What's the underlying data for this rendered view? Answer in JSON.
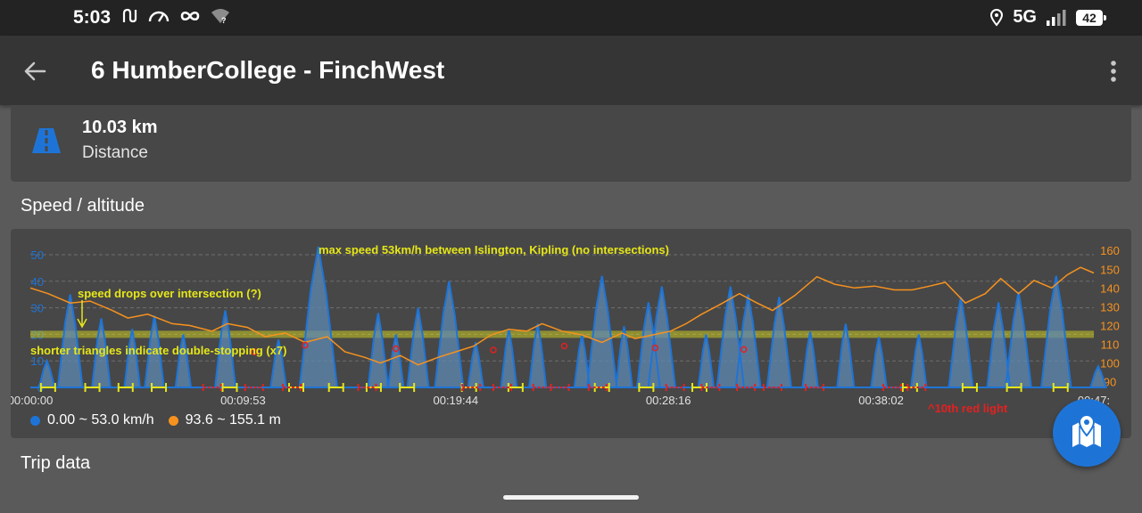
{
  "status_bar": {
    "time": "5:03",
    "network": "5G",
    "battery": "42",
    "icons": [
      "route-status-icon",
      "speedometer-icon",
      "infinity-icon",
      "wifi-unknown-icon",
      "location-icon",
      "signal-icon",
      "battery-icon"
    ]
  },
  "app_bar": {
    "title": "6 HumberCollege - FinchWest",
    "back_icon": "arrow-back-icon",
    "menu_icon": "more-vert-icon"
  },
  "distance": {
    "value": "10.03 km",
    "label": "Distance",
    "icon": "road-icon",
    "icon_color": "#1e74d6"
  },
  "section_speed_altitude": "Speed / altitude",
  "section_trip_data": "Trip data",
  "map_button_icon": "map-location-icon",
  "chart_data": {
    "type": "area",
    "left_axis": {
      "ticks": [
        "0",
        "10",
        "20",
        "30",
        "40",
        "50"
      ],
      "range": [
        0,
        53
      ],
      "color": "#1e74d6"
    },
    "right_axis": {
      "ticks": [
        "90",
        "100",
        "110",
        "120",
        "130",
        "140",
        "150",
        "160"
      ],
      "range": [
        87,
        162
      ],
      "color": "#f7921e"
    },
    "x_ticks": [
      "00:00:00",
      "00:09:53",
      "00:19:44",
      "00:28:16",
      "00:38:02",
      "00:47:"
    ],
    "x_range_minutes": [
      0,
      48
    ],
    "grid": true,
    "series": [
      {
        "name": "0.00 ~ 53.0 km/h",
        "color": "#1e74d6",
        "axis": "left"
      },
      {
        "name": "93.6 ~ 155.1 m",
        "color": "#f7921e",
        "axis": "right"
      }
    ],
    "speed_peaks": [
      [
        0.75,
        10
      ],
      [
        1.8,
        35
      ],
      [
        3.2,
        26
      ],
      [
        4.6,
        22
      ],
      [
        5.6,
        27
      ],
      [
        6.9,
        20
      ],
      [
        8.8,
        29
      ],
      [
        11.2,
        18
      ],
      [
        13.0,
        53
      ],
      [
        15.7,
        28
      ],
      [
        16.5,
        20
      ],
      [
        17.5,
        30
      ],
      [
        18.9,
        40
      ],
      [
        20.1,
        17
      ],
      [
        21.6,
        22
      ],
      [
        22.9,
        24
      ],
      [
        24.9,
        20
      ],
      [
        25.8,
        42
      ],
      [
        26.8,
        23
      ],
      [
        27.9,
        32
      ],
      [
        28.5,
        38
      ],
      [
        30.5,
        20
      ],
      [
        31.6,
        38
      ],
      [
        32.4,
        35
      ],
      [
        33.8,
        34
      ],
      [
        35.2,
        21
      ],
      [
        36.8,
        24
      ],
      [
        38.3,
        19
      ],
      [
        40.1,
        20
      ],
      [
        42.0,
        34
      ],
      [
        43.7,
        32
      ],
      [
        44.6,
        36
      ],
      [
        46.3,
        42
      ],
      [
        48.2,
        8
      ]
    ],
    "altitude": [
      [
        0,
        140
      ],
      [
        0.8,
        137
      ],
      [
        1.8,
        132
      ],
      [
        2.7,
        133
      ],
      [
        3.7,
        128
      ],
      [
        4.4,
        124
      ],
      [
        5.3,
        126
      ],
      [
        6.4,
        121
      ],
      [
        7.2,
        120
      ],
      [
        8.2,
        117
      ],
      [
        8.9,
        121
      ],
      [
        9.8,
        119
      ],
      [
        10.6,
        114
      ],
      [
        11.5,
        116
      ],
      [
        12.4,
        111
      ],
      [
        13.4,
        114
      ],
      [
        14.2,
        106
      ],
      [
        15.1,
        103
      ],
      [
        15.8,
        100
      ],
      [
        16.7,
        104
      ],
      [
        17.5,
        99
      ],
      [
        18.4,
        103
      ],
      [
        19.2,
        106
      ],
      [
        20.0,
        109
      ],
      [
        20.8,
        115
      ],
      [
        21.6,
        118
      ],
      [
        22.4,
        117
      ],
      [
        23.1,
        121
      ],
      [
        24.0,
        117
      ],
      [
        24.9,
        115
      ],
      [
        25.8,
        111
      ],
      [
        26.7,
        116
      ],
      [
        27.3,
        113
      ],
      [
        28.1,
        115
      ],
      [
        28.9,
        117
      ],
      [
        29.6,
        121
      ],
      [
        30.3,
        126
      ],
      [
        31.1,
        131
      ],
      [
        32.0,
        137
      ],
      [
        32.8,
        132
      ],
      [
        33.5,
        128
      ],
      [
        34.5,
        136
      ],
      [
        35.5,
        146
      ],
      [
        36.3,
        142
      ],
      [
        37.2,
        140
      ],
      [
        38.1,
        141
      ],
      [
        39.0,
        139
      ],
      [
        39.8,
        139
      ],
      [
        40.6,
        141
      ],
      [
        41.3,
        143
      ],
      [
        42.2,
        132
      ],
      [
        43.1,
        137
      ],
      [
        43.8,
        145
      ],
      [
        44.6,
        137
      ],
      [
        45.3,
        144
      ],
      [
        46.1,
        140
      ],
      [
        46.8,
        147
      ],
      [
        47.4,
        151
      ],
      [
        48.0,
        148
      ]
    ],
    "intersection_band": {
      "value": 20,
      "color": "#e6e619"
    },
    "stop_markers": {
      "yellow_minutes": [
        0.8,
        2.8,
        4.3,
        5.8,
        9.0,
        12.0,
        13.8,
        15.5,
        17.0,
        19.8,
        21.9,
        25.8,
        27.8,
        30.2,
        39.7,
        42.4,
        44.4,
        46.5
      ],
      "red_minutes": [
        8.2,
        10.1,
        11.8,
        15.2,
        19.9,
        21.3,
        23.1,
        23.9,
        25.6,
        29.1,
        30.7,
        32.3,
        33.5,
        35.4,
        38.9,
        40.0
      ],
      "red_open_circles": [
        [
          10.1,
          13.4
        ],
        [
          12.4,
          15.9
        ],
        [
          16.5,
          14.6
        ],
        [
          20.9,
          14.1
        ],
        [
          24.1,
          15.6
        ],
        [
          28.2,
          14.9
        ],
        [
          32.2,
          14.3
        ]
      ]
    },
    "annotations": [
      {
        "text": "max speed 53km/h between Islington, Kipling (no intersections)",
        "color": "#e6e619"
      },
      {
        "text": "speed drops over intersection (?)",
        "color": "#e6e619"
      },
      {
        "text": "shorter triangles indicate double-stopping (x7)",
        "color": "#e6e619"
      },
      {
        "text": "^10th red light",
        "color": "#e52020"
      }
    ]
  }
}
